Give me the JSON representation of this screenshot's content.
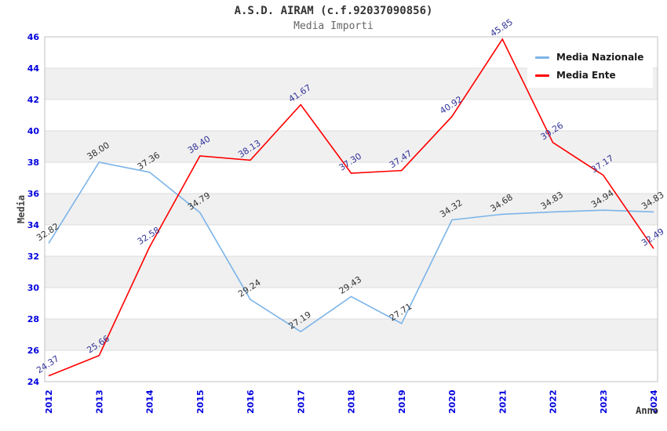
{
  "header": {
    "title": "A.S.D. AIRAM (c.f.92037090856)",
    "subtitle": "Media Importi"
  },
  "chart_data": {
    "type": "line",
    "title": "A.S.D. AIRAM (c.f.92037090856)",
    "subtitle": "Media Importi",
    "categories": [
      "2012",
      "2013",
      "2014",
      "2015",
      "2016",
      "2017",
      "2018",
      "2019",
      "2020",
      "2021",
      "2022",
      "2023",
      "2024"
    ],
    "series": [
      {
        "name": "Media Nazionale",
        "color": "#7cb4e8",
        "label_color": "#333333",
        "values": [
          32.82,
          38.0,
          37.36,
          34.79,
          29.24,
          27.19,
          29.43,
          27.71,
          34.32,
          34.68,
          34.83,
          34.94,
          34.83
        ]
      },
      {
        "name": "Media Ente",
        "color": "#ff0000",
        "label_color": "#333399",
        "values": [
          24.37,
          25.66,
          32.58,
          38.4,
          38.13,
          41.67,
          37.3,
          37.47,
          40.92,
          45.85,
          39.26,
          37.17,
          32.49
        ]
      }
    ],
    "xlabel": "Anno",
    "ylabel": "Media",
    "ylim": [
      24,
      46
    ],
    "ytick_step": 2,
    "grid": "alternating-horizontal-bands",
    "legend_position": "top-right"
  },
  "colors": {
    "tick_label": "#0000dd",
    "band_gray": "#f0f0f0",
    "grid_line": "#dcdcdc",
    "plot_border": "#c0c0c0",
    "axis_title": "#444444"
  }
}
